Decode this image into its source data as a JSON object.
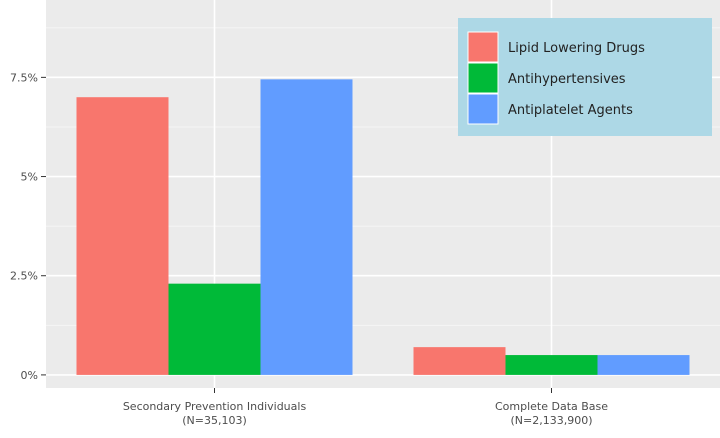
{
  "chart_data": {
    "type": "bar",
    "title": "",
    "xlabel": "",
    "ylabel": "",
    "categories": [
      "Secondary Prevention Individuals\n(N=35,103)",
      "Complete Data Base\n(N=2,133,900)"
    ],
    "series": [
      {
        "name": "Lipid Lowering Drugs",
        "color": "#F8766D",
        "values": [
          7.0,
          0.7
        ]
      },
      {
        "name": "Antihypertensives",
        "color": "#00BA38",
        "values": [
          2.3,
          0.5
        ]
      },
      {
        "name": "Antiplatelet Agents",
        "color": "#619CFF",
        "values": [
          7.45,
          0.5
        ]
      }
    ],
    "yticks": [
      0,
      2.5,
      5,
      7.5
    ],
    "ytick_labels": [
      "0%",
      "2.5%",
      "5%",
      "7.5%"
    ],
    "ylim": [
      -0.33,
      9.45
    ],
    "grid": true,
    "legend_position": "top-right",
    "panel_background": "#EBEBEB",
    "legend_background": "#ADD8E6"
  }
}
